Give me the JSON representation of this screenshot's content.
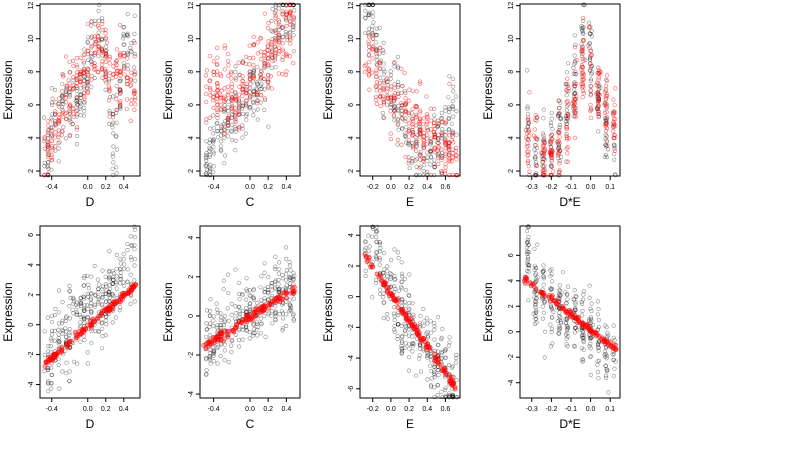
{
  "chart_data": [
    {
      "type": "scatter",
      "xlabel": "D",
      "ylabel": "Expression",
      "xlim": [
        -0.53,
        0.58
      ],
      "ylim": [
        1.7,
        12.1
      ],
      "xticks": [
        -0.4,
        0.0,
        0.2,
        0.4
      ],
      "xtick_labels": [
        "-0.4",
        "0.0",
        "0.2",
        "0.4"
      ],
      "yticks": [
        2,
        4,
        6,
        8,
        10,
        12
      ],
      "ytick_labels": [
        "2",
        "4",
        "6",
        "8",
        "10",
        "12"
      ],
      "series": [
        {
          "style": "black-open",
          "x_range": [
            -0.48,
            0.54
          ],
          "n": 260,
          "points": [
            [
              -0.45,
              2.9
            ],
            [
              -0.4,
              5.5
            ],
            [
              -0.3,
              5.1
            ],
            [
              -0.2,
              6.8
            ],
            [
              -0.1,
              6.4
            ],
            [
              0.0,
              8.6
            ],
            [
              0.07,
              9.3
            ],
            [
              0.12,
              10.0
            ],
            [
              0.13,
              11.3
            ],
            [
              0.2,
              8.2
            ],
            [
              0.3,
              3.0
            ],
            [
              0.4,
              9.6
            ],
            [
              0.5,
              8.4
            ]
          ]
        },
        {
          "style": "red-open",
          "x_range": [
            -0.48,
            0.54
          ],
          "n": 260,
          "points": [
            [
              -0.45,
              3.3
            ],
            [
              -0.35,
              5.2
            ],
            [
              -0.2,
              6.6
            ],
            [
              -0.1,
              7.6
            ],
            [
              0.0,
              8.3
            ],
            [
              0.12,
              9.6
            ],
            [
              0.25,
              8.0
            ],
            [
              0.4,
              7.8
            ],
            [
              0.5,
              7.2
            ]
          ]
        }
      ]
    },
    {
      "type": "scatter",
      "xlabel": "C",
      "ylabel": "Expression",
      "xlim": [
        -0.55,
        0.55
      ],
      "ylim": [
        1.7,
        12.1
      ],
      "xticks": [
        -0.4,
        0.0,
        0.2,
        0.4
      ],
      "xtick_labels": [
        "-0.4",
        "0.0",
        "0.2",
        "0.4"
      ],
      "yticks": [
        2,
        4,
        6,
        8,
        10,
        12
      ],
      "ytick_labels": [
        "2",
        "4",
        "6",
        "8",
        "10",
        "12"
      ],
      "series": [
        {
          "style": "black-open",
          "x_range": [
            -0.5,
            0.5
          ],
          "n": 260,
          "points": [
            [
              -0.45,
              2.9
            ],
            [
              -0.3,
              5.2
            ],
            [
              -0.1,
              5.7
            ],
            [
              0.0,
              7.0
            ],
            [
              0.2,
              7.9
            ],
            [
              0.3,
              11.2
            ],
            [
              0.45,
              11.3
            ]
          ]
        },
        {
          "style": "red-open",
          "x_range": [
            -0.5,
            0.5
          ],
          "n": 260,
          "points": [
            [
              -0.45,
              6.8
            ],
            [
              -0.3,
              7.2
            ],
            [
              -0.1,
              6.5
            ],
            [
              0.1,
              8.3
            ],
            [
              0.3,
              9.6
            ],
            [
              0.45,
              10.9
            ]
          ]
        }
      ]
    },
    {
      "type": "scatter",
      "xlabel": "E",
      "ylabel": "Expression",
      "xlim": [
        -0.34,
        0.76
      ],
      "ylim": [
        1.7,
        12.1
      ],
      "xticks": [
        -0.2,
        0.0,
        0.2,
        0.4,
        0.6
      ],
      "xtick_labels": [
        "-0.2",
        "0.0",
        "0.2",
        "0.4",
        "0.6"
      ],
      "yticks": [
        2,
        4,
        6,
        8,
        10,
        12
      ],
      "ytick_labels": [
        "2",
        "4",
        "6",
        "8",
        "10",
        "12"
      ],
      "series": [
        {
          "style": "black-open",
          "x_range": [
            -0.28,
            0.72
          ],
          "n": 260,
          "points": [
            [
              -0.25,
              11.2
            ],
            [
              -0.2,
              10.8
            ],
            [
              -0.1,
              7.7
            ],
            [
              0.0,
              6.8
            ],
            [
              0.1,
              5.8
            ],
            [
              0.2,
              4.3
            ],
            [
              0.3,
              3.0
            ],
            [
              0.45,
              3.0
            ],
            [
              0.7,
              5.7
            ]
          ]
        },
        {
          "style": "red-open",
          "x_range": [
            -0.28,
            0.72
          ],
          "n": 260,
          "points": [
            [
              -0.3,
              8.1
            ],
            [
              -0.2,
              9.1
            ],
            [
              -0.1,
              7.0
            ],
            [
              0.0,
              5.9
            ],
            [
              0.2,
              5.0
            ],
            [
              0.4,
              4.2
            ],
            [
              0.7,
              2.9
            ]
          ]
        }
      ]
    },
    {
      "type": "scatter",
      "xlabel": "D*E",
      "ylabel": "Expression",
      "xlim": [
        -0.36,
        0.15
      ],
      "ylim": [
        1.7,
        12.1
      ],
      "xticks": [
        -0.3,
        -0.2,
        -0.1,
        0.0,
        0.1
      ],
      "xtick_labels": [
        "-0.3",
        "-0.2",
        "-0.1",
        "0.0",
        "0.1"
      ],
      "yticks": [
        2,
        4,
        6,
        8,
        10,
        12
      ],
      "ytick_labels": [
        "2",
        "4",
        "6",
        "8",
        "10",
        "12"
      ],
      "series": [
        {
          "style": "black-open",
          "x_range": [
            -0.34,
            0.13
          ],
          "n": 260,
          "points": [
            [
              -0.33,
              5.8
            ],
            [
              -0.3,
              3.0
            ],
            [
              -0.2,
              3.3
            ],
            [
              -0.1,
              6.0
            ],
            [
              -0.02,
              11.2
            ],
            [
              0.0,
              8.5
            ],
            [
              0.05,
              6.0
            ],
            [
              0.1,
              4.0
            ]
          ]
        },
        {
          "style": "red-open",
          "x_range": [
            -0.34,
            0.13
          ],
          "n": 260,
          "points": [
            [
              -0.3,
              3.9
            ],
            [
              -0.2,
              2.8
            ],
            [
              -0.1,
              5.0
            ],
            [
              -0.01,
              10.5
            ],
            [
              0.0,
              7.2
            ],
            [
              0.05,
              6.2
            ],
            [
              0.12,
              5.0
            ]
          ]
        }
      ]
    },
    {
      "type": "scatter",
      "xlabel": "D",
      "ylabel": "Expression",
      "xlim": [
        -0.53,
        0.58
      ],
      "ylim": [
        -4.9,
        6.6
      ],
      "xticks": [
        -0.4,
        0.0,
        0.2,
        0.4
      ],
      "xtick_labels": [
        "-0.4",
        "0.0",
        "0.2",
        "0.4"
      ],
      "yticks": [
        -4,
        -2,
        0,
        2,
        4,
        6
      ],
      "ytick_labels": [
        "-4",
        "-2",
        "0",
        "2",
        "4",
        "6"
      ],
      "series": [
        {
          "style": "black-open",
          "x_range": [
            -0.48,
            0.54
          ],
          "n": 320,
          "points": [
            [
              -0.45,
              -2.8
            ],
            [
              -0.3,
              -1.0
            ],
            [
              -0.1,
              0.3
            ],
            [
              0.0,
              1.1
            ],
            [
              0.2,
              1.6
            ],
            [
              0.4,
              3.2
            ],
            [
              0.5,
              4.5
            ]
          ]
        },
        {
          "style": "red-fit",
          "line_from": [
            -0.48,
            -2.6
          ],
          "line_to": [
            0.54,
            2.7
          ],
          "n": 130
        }
      ]
    },
    {
      "type": "scatter",
      "xlabel": "C",
      "ylabel": "Expression",
      "xlim": [
        -0.55,
        0.55
      ],
      "ylim": [
        -4.2,
        4.6
      ],
      "xticks": [
        -0.4,
        0.0,
        0.2,
        0.4
      ],
      "xtick_labels": [
        "-0.4",
        "0.0",
        "0.2",
        "0.4"
      ],
      "yticks": [
        -4,
        -2,
        0,
        2,
        4
      ],
      "ytick_labels": [
        "-4",
        "-2",
        "0",
        "2",
        "4"
      ],
      "series": [
        {
          "style": "black-open",
          "x_range": [
            -0.5,
            0.5
          ],
          "n": 320,
          "points": [
            [
              -0.45,
              -1.6
            ],
            [
              -0.3,
              -0.6
            ],
            [
              -0.1,
              0.1
            ],
            [
              0.1,
              0.4
            ],
            [
              0.3,
              1.0
            ],
            [
              0.45,
              1.4
            ]
          ]
        },
        {
          "style": "red-fit",
          "line_from": [
            -0.5,
            -1.5
          ],
          "line_to": [
            0.5,
            1.4
          ],
          "n": 110
        }
      ]
    },
    {
      "type": "scatter",
      "xlabel": "E",
      "ylabel": "Expression",
      "xlim": [
        -0.34,
        0.76
      ],
      "ylim": [
        -6.6,
        4.6
      ],
      "xticks": [
        -0.2,
        0.0,
        0.2,
        0.4,
        0.6
      ],
      "xtick_labels": [
        "-0.2",
        "0.0",
        "0.2",
        "0.4",
        "0.6"
      ],
      "yticks": [
        -6,
        -4,
        -2,
        0,
        2,
        4
      ],
      "ytick_labels": [
        "-6",
        "-4",
        "-2",
        "0",
        "2",
        "4"
      ],
      "series": [
        {
          "style": "black-open",
          "x_range": [
            -0.28,
            0.72
          ],
          "n": 320,
          "points": [
            [
              -0.25,
              2.0
            ],
            [
              -0.15,
              3.6
            ],
            [
              -0.1,
              1.0
            ],
            [
              0.0,
              0.2
            ],
            [
              0.1,
              -0.9
            ],
            [
              0.2,
              -1.8
            ],
            [
              0.4,
              -3.3
            ],
            [
              0.7,
              -5.6
            ]
          ]
        },
        {
          "style": "red-fit",
          "line_from": [
            -0.28,
            2.6
          ],
          "line_to": [
            0.72,
            -6.0
          ],
          "n": 130
        }
      ]
    },
    {
      "type": "scatter",
      "xlabel": "D*E",
      "ylabel": "Expression",
      "xlim": [
        -0.36,
        0.15
      ],
      "ylim": [
        -5.2,
        8.3
      ],
      "xticks": [
        -0.3,
        -0.2,
        -0.1,
        0.0,
        0.1
      ],
      "xtick_labels": [
        "-0.3",
        "-0.2",
        "-0.1",
        "0.0",
        "0.1"
      ],
      "yticks": [
        -4,
        -2,
        0,
        2,
        4,
        6
      ],
      "ytick_labels": [
        "-4",
        "-2",
        "0",
        "2",
        "4",
        "6"
      ],
      "series": [
        {
          "style": "black-open",
          "x_range": [
            -0.34,
            0.13
          ],
          "n": 320,
          "points": [
            [
              -0.33,
              7.5
            ],
            [
              -0.3,
              3.5
            ],
            [
              -0.2,
              2.5
            ],
            [
              -0.1,
              1.0
            ],
            [
              0.0,
              0.2
            ],
            [
              0.05,
              -0.8
            ],
            [
              0.1,
              -1.5
            ]
          ]
        },
        {
          "style": "red-fit",
          "line_from": [
            -0.34,
            4.2
          ],
          "line_to": [
            0.13,
            -1.4
          ],
          "n": 110
        }
      ]
    }
  ]
}
